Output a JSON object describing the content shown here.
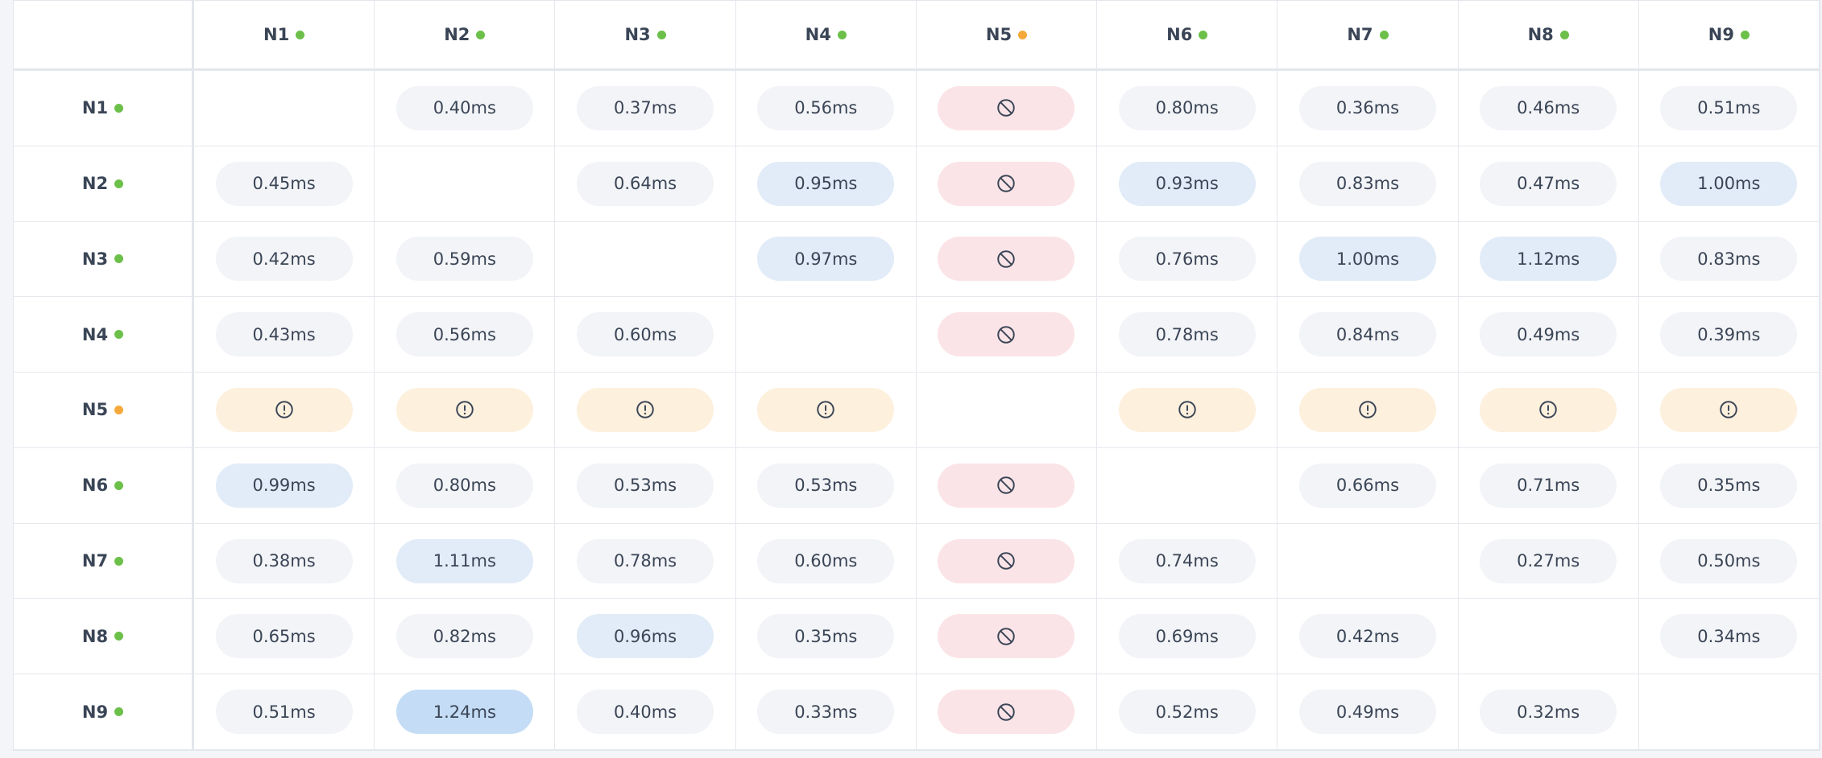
{
  "nodes": [
    {
      "label": "N1",
      "status_color": "#6cc04a"
    },
    {
      "label": "N2",
      "status_color": "#6cc04a"
    },
    {
      "label": "N3",
      "status_color": "#6cc04a"
    },
    {
      "label": "N4",
      "status_color": "#6cc04a"
    },
    {
      "label": "N5",
      "status_color": "#f5a93b"
    },
    {
      "label": "N6",
      "status_color": "#6cc04a"
    },
    {
      "label": "N7",
      "status_color": "#6cc04a"
    },
    {
      "label": "N8",
      "status_color": "#6cc04a"
    },
    {
      "label": "N9",
      "status_color": "#6cc04a"
    }
  ],
  "cell_color": "#f3f4f7",
  "rows": [
    {
      "cells": [
        null,
        "0.40ms",
        "0.37ms",
        "0.56ms",
        {
          "icon": "blocked",
          "color": "#fbe4e7"
        },
        "0.80ms",
        "0.36ms",
        "0.46ms",
        "0.51ms"
      ]
    },
    {
      "cells": [
        "0.45ms",
        null,
        "0.64ms",
        {
          "text": "0.95ms",
          "color": "#e2ecf8"
        },
        {
          "icon": "blocked",
          "color": "#fbe4e7"
        },
        {
          "text": "0.93ms",
          "color": "#e2ecf8"
        },
        "0.83ms",
        "0.47ms",
        {
          "text": "1.00ms",
          "color": "#e2ecf8"
        }
      ]
    },
    {
      "cells": [
        "0.42ms",
        "0.59ms",
        null,
        {
          "text": "0.97ms",
          "color": "#e2ecf8"
        },
        {
          "icon": "blocked",
          "color": "#fbe4e7"
        },
        "0.76ms",
        {
          "text": "1.00ms",
          "color": "#e2ecf8"
        },
        {
          "text": "1.12ms",
          "color": "#e2ecf8"
        },
        "0.83ms"
      ]
    },
    {
      "cells": [
        "0.43ms",
        "0.56ms",
        "0.60ms",
        null,
        {
          "icon": "blocked",
          "color": "#fbe4e7"
        },
        "0.78ms",
        "0.84ms",
        "0.49ms",
        "0.39ms"
      ]
    },
    {
      "cells": [
        {
          "icon": "warning",
          "color": "#fdf0dd"
        },
        {
          "icon": "warning",
          "color": "#fdf0dd"
        },
        {
          "icon": "warning",
          "color": "#fdf0dd"
        },
        {
          "icon": "warning",
          "color": "#fdf0dd"
        },
        null,
        {
          "icon": "warning",
          "color": "#fdf0dd"
        },
        {
          "icon": "warning",
          "color": "#fdf0dd"
        },
        {
          "icon": "warning",
          "color": "#fdf0dd"
        },
        {
          "icon": "warning",
          "color": "#fdf0dd"
        }
      ]
    },
    {
      "cells": [
        {
          "text": "0.99ms",
          "color": "#e2ecf8"
        },
        "0.80ms",
        "0.53ms",
        "0.53ms",
        {
          "icon": "blocked",
          "color": "#fbe4e7"
        },
        null,
        "0.66ms",
        "0.71ms",
        "0.35ms"
      ]
    },
    {
      "cells": [
        "0.38ms",
        {
          "text": "1.11ms",
          "color": "#e2ecf8"
        },
        "0.78ms",
        "0.60ms",
        {
          "icon": "blocked",
          "color": "#fbe4e7"
        },
        "0.74ms",
        null,
        "0.27ms",
        "0.50ms"
      ]
    },
    {
      "cells": [
        "0.65ms",
        "0.82ms",
        {
          "text": "0.96ms",
          "color": "#e2ecf8"
        },
        "0.35ms",
        {
          "icon": "blocked",
          "color": "#fbe4e7"
        },
        "0.69ms",
        "0.42ms",
        null,
        "0.34ms"
      ]
    },
    {
      "cells": [
        "0.51ms",
        {
          "text": "1.24ms",
          "color": "#c4dcf5"
        },
        "0.40ms",
        "0.33ms",
        {
          "icon": "blocked",
          "color": "#fbe4e7"
        },
        "0.52ms",
        "0.49ms",
        "0.32ms",
        null
      ]
    }
  ]
}
